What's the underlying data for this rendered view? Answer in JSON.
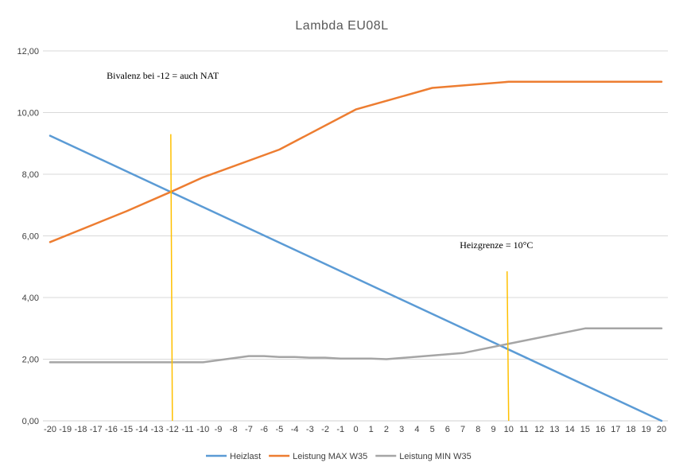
{
  "chart_data": {
    "type": "line",
    "title": "Lambda EU08L",
    "xlabel": "",
    "ylabel": "",
    "x": [
      -20,
      -19,
      -18,
      -17,
      -16,
      -15,
      -14,
      -13,
      -12,
      -11,
      -10,
      -9,
      -8,
      -7,
      -6,
      -5,
      -4,
      -3,
      -2,
      -1,
      0,
      1,
      2,
      3,
      4,
      5,
      6,
      7,
      8,
      9,
      10,
      11,
      12,
      13,
      14,
      15,
      16,
      17,
      18,
      19,
      20
    ],
    "x_tick_labels": [
      "-20",
      "-19",
      "-18",
      "-17",
      "-16",
      "-15",
      "-14",
      "-13",
      "-12",
      "-11",
      "-10",
      "-9",
      "-8",
      "-7",
      "-6",
      "-5",
      "-4",
      "-3",
      "-2",
      "-1",
      "0",
      "1",
      "2",
      "3",
      "4",
      "5",
      "6",
      "7",
      "8",
      "9",
      "10",
      "11",
      "12",
      "13",
      "14",
      "15",
      "16",
      "17",
      "18",
      "19",
      "20"
    ],
    "ylim": [
      0,
      12
    ],
    "y_tick_labels": [
      "0,00",
      "2,00",
      "4,00",
      "6,00",
      "8,00",
      "10,00",
      "12,00"
    ],
    "grid": true,
    "legend_position": "bottom",
    "series": [
      {
        "name": "Heizlast",
        "color": "#5b9bd5",
        "points": [
          [
            -20,
            9.25
          ],
          [
            20,
            0.0
          ]
        ]
      },
      {
        "name": "Leistung MAX W35",
        "color": "#ed7d31",
        "points": [
          [
            -20,
            5.8
          ],
          [
            -15,
            6.8
          ],
          [
            -12,
            7.45
          ],
          [
            -10,
            7.9
          ],
          [
            -5,
            8.8
          ],
          [
            0,
            10.1
          ],
          [
            5,
            10.8
          ],
          [
            10,
            11.0
          ],
          [
            15,
            11.0
          ],
          [
            20,
            11.0
          ]
        ]
      },
      {
        "name": "Leistung MIN W35",
        "color": "#a5a5a5",
        "points": [
          [
            -20,
            1.9
          ],
          [
            -15,
            1.9
          ],
          [
            -12,
            1.9
          ],
          [
            -10,
            1.9
          ],
          [
            -7,
            2.1
          ],
          [
            -6,
            2.1
          ],
          [
            -5,
            2.07
          ],
          [
            -4,
            2.07
          ],
          [
            -3,
            2.05
          ],
          [
            -2,
            2.05
          ],
          [
            -1,
            2.02
          ],
          [
            0,
            2.02
          ],
          [
            1,
            2.02
          ],
          [
            2,
            2.0
          ],
          [
            5,
            2.12
          ],
          [
            7,
            2.2
          ],
          [
            10,
            2.5
          ],
          [
            15,
            3.0
          ],
          [
            20,
            3.0
          ]
        ]
      }
    ],
    "vertical_markers": [
      {
        "x": -12,
        "y_top": 9.3,
        "color": "#ffc000"
      },
      {
        "x": 10,
        "y_top": 4.85,
        "color": "#ffc000"
      }
    ],
    "annotations": [
      {
        "text": "Bivalenz bei -12 = auch NAT",
        "x": -16.3,
        "y": 11.1
      },
      {
        "text": "Heizgrenze = 10°C",
        "x": 6.8,
        "y": 5.6
      }
    ]
  }
}
